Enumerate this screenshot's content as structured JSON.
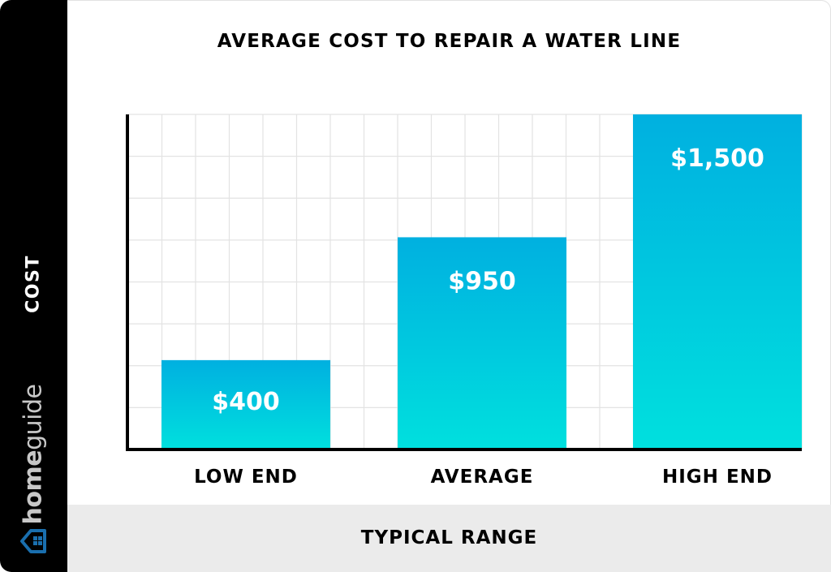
{
  "chart_data": {
    "type": "bar",
    "title": "AVERAGE COST TO REPAIR A WATER LINE",
    "xlabel": "TYPICAL RANGE",
    "ylabel": "COST",
    "categories": [
      "LOW END",
      "AVERAGE",
      "HIGH END"
    ],
    "values": [
      400,
      950,
      1500
    ],
    "data_labels": [
      "$400",
      "$950",
      "$1,500"
    ],
    "ylim": [
      0,
      1500
    ],
    "grid": true,
    "bar_gradient": [
      "#00b0e0",
      "#00e0de"
    ]
  },
  "brand": {
    "logo_text_bold": "home",
    "logo_text": "guide",
    "logo_color": "#1a6fae",
    "logo_icon": "house-icon"
  }
}
